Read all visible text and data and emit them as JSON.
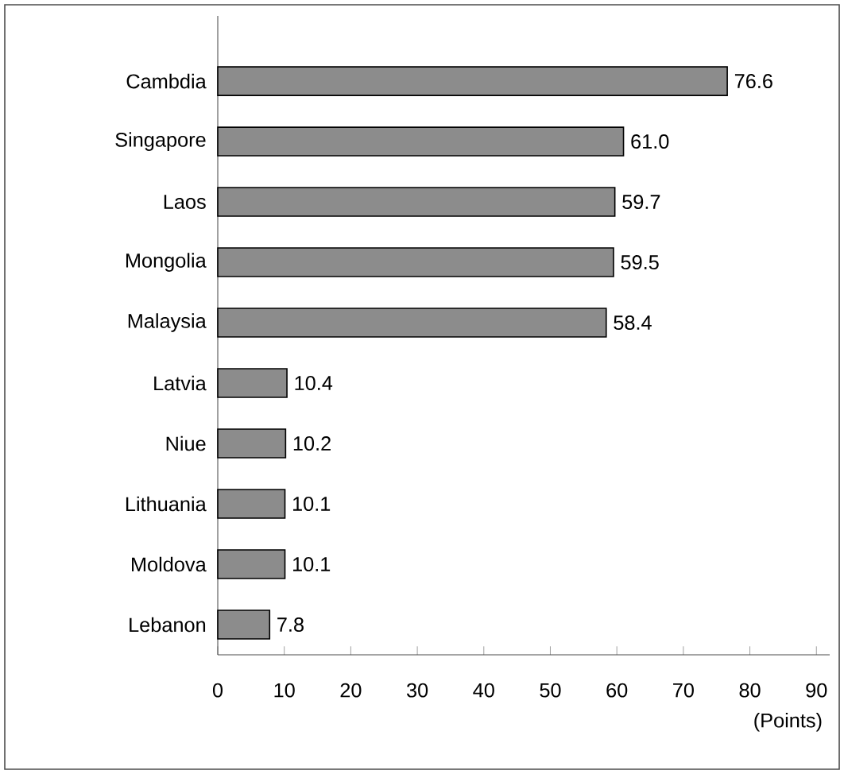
{
  "chart_data": {
    "type": "bar",
    "orientation": "horizontal",
    "categories": [
      "Cambdia",
      "Singapore",
      "Laos",
      "Mongolia",
      "Malaysia",
      "Latvia",
      "Niue",
      "Lithuania",
      "Moldova",
      "Lebanon"
    ],
    "values": [
      76.6,
      61.0,
      59.7,
      59.5,
      58.4,
      10.4,
      10.2,
      10.1,
      10.1,
      7.8
    ],
    "value_labels": [
      "76.6",
      "61.0",
      "59.7",
      "59.5",
      "58.4",
      "10.4",
      "10.2",
      "10.1",
      "10.1",
      "7.8"
    ],
    "color": "#8c8c8c",
    "xlabel": "(Points)",
    "xlim": [
      0,
      92
    ],
    "xticks": [
      0,
      10,
      20,
      30,
      40,
      50,
      60,
      70,
      80,
      90
    ]
  }
}
